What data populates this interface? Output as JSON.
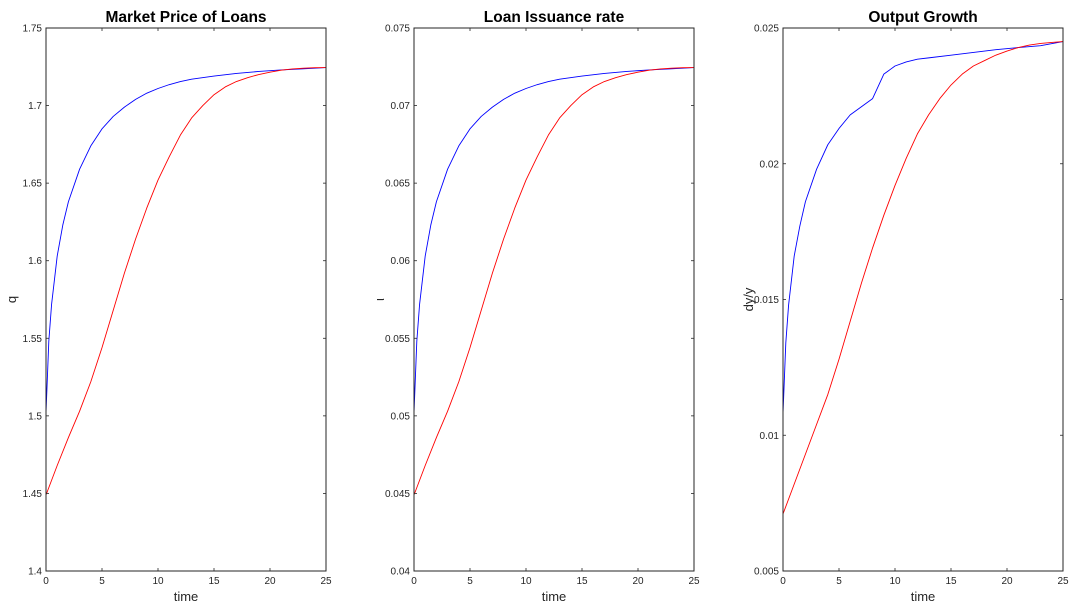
{
  "chart_data": [
    {
      "type": "line",
      "title": "Market Price of Loans",
      "xlabel": "time",
      "ylabel": "q",
      "xlim": [
        0,
        25
      ],
      "ylim": [
        1.4,
        1.75
      ],
      "xticks": [
        0,
        5,
        10,
        15,
        20,
        25
      ],
      "xticklabels": [
        "0",
        "5",
        "10",
        "15",
        "20",
        "25"
      ],
      "yticks": [
        1.4,
        1.45,
        1.5,
        1.55,
        1.6,
        1.65,
        1.7,
        1.75
      ],
      "yticklabels": [
        "1.4",
        "1.45",
        "1.5",
        "1.55",
        "1.6",
        "1.65",
        "1.7",
        "1.75"
      ],
      "grid": false,
      "series": [
        {
          "color": "#0000ff",
          "x": [
            0,
            0.25,
            0.5,
            1,
            1.5,
            2,
            3,
            4,
            5,
            6,
            7,
            8,
            9,
            10,
            11,
            12,
            13,
            15,
            17,
            19,
            21,
            23,
            25
          ],
          "y": [
            1.502,
            1.548,
            1.572,
            1.603,
            1.623,
            1.638,
            1.659,
            1.674,
            1.685,
            1.693,
            1.699,
            1.704,
            1.708,
            1.711,
            1.7135,
            1.7155,
            1.717,
            1.719,
            1.7207,
            1.722,
            1.723,
            1.7237,
            1.7245
          ]
        },
        {
          "color": "#ff0000",
          "x": [
            0,
            1,
            2,
            3,
            4,
            5,
            6,
            7,
            8,
            9,
            10,
            11,
            12,
            13,
            14,
            15,
            16,
            17,
            18,
            19,
            20,
            21,
            22,
            23,
            24,
            25
          ],
          "y": [
            1.449,
            1.468,
            1.486,
            1.503,
            1.522,
            1.544,
            1.568,
            1.592,
            1.614,
            1.634,
            1.652,
            1.667,
            1.681,
            1.692,
            1.7,
            1.707,
            1.712,
            1.7155,
            1.718,
            1.72,
            1.7215,
            1.7228,
            1.7236,
            1.7241,
            1.7244,
            1.7245
          ]
        }
      ]
    },
    {
      "type": "line",
      "title": "Loan Issuance rate",
      "xlabel": "time",
      "ylabel": "ι",
      "xlim": [
        0,
        25
      ],
      "ylim": [
        0.04,
        0.075
      ],
      "xticks": [
        0,
        5,
        10,
        15,
        20,
        25
      ],
      "xticklabels": [
        "0",
        "5",
        "10",
        "15",
        "20",
        "25"
      ],
      "yticks": [
        0.04,
        0.045,
        0.05,
        0.055,
        0.06,
        0.065,
        0.07,
        0.075
      ],
      "yticklabels": [
        "0.04",
        "0.045",
        "0.05",
        "0.055",
        "0.06",
        "0.065",
        "0.07",
        "0.075"
      ],
      "grid": false,
      "series": [
        {
          "color": "#0000ff",
          "x": [
            0,
            0.25,
            0.5,
            1,
            1.5,
            2,
            3,
            4,
            5,
            6,
            7,
            8,
            9,
            10,
            11,
            12,
            13,
            15,
            17,
            19,
            21,
            23,
            25
          ],
          "y": [
            0.0502,
            0.0548,
            0.0572,
            0.0603,
            0.0623,
            0.0638,
            0.0659,
            0.0674,
            0.0685,
            0.0693,
            0.0699,
            0.0704,
            0.0708,
            0.0711,
            0.07135,
            0.07155,
            0.0717,
            0.0719,
            0.07207,
            0.0722,
            0.0723,
            0.07237,
            0.07245
          ]
        },
        {
          "color": "#ff0000",
          "x": [
            0,
            1,
            2,
            3,
            4,
            5,
            6,
            7,
            8,
            9,
            10,
            11,
            12,
            13,
            14,
            15,
            16,
            17,
            18,
            19,
            20,
            21,
            22,
            23,
            24,
            25
          ],
          "y": [
            0.0449,
            0.0468,
            0.0486,
            0.0503,
            0.0522,
            0.0544,
            0.0568,
            0.0592,
            0.0614,
            0.0634,
            0.0652,
            0.0667,
            0.0681,
            0.0692,
            0.07,
            0.0707,
            0.0712,
            0.07155,
            0.0718,
            0.072,
            0.07215,
            0.07228,
            0.07236,
            0.07241,
            0.07244,
            0.07245
          ]
        }
      ]
    },
    {
      "type": "line",
      "title": "Output Growth",
      "xlabel": "time",
      "ylabel": "dy/y",
      "xlim": [
        0,
        25
      ],
      "ylim": [
        0.005,
        0.025
      ],
      "xticks": [
        0,
        5,
        10,
        15,
        20,
        25
      ],
      "xticklabels": [
        "0",
        "5",
        "10",
        "15",
        "20",
        "25"
      ],
      "yticks": [
        0.005,
        0.01,
        0.015,
        0.02,
        0.025
      ],
      "yticklabels": [
        "0.005",
        "0.01",
        "0.015",
        "0.02",
        "0.025"
      ],
      "grid": false,
      "series": [
        {
          "color": "#0000ff",
          "x": [
            0,
            0.25,
            0.5,
            1,
            1.5,
            2,
            3,
            4,
            5,
            6,
            7,
            8,
            9,
            10,
            11,
            12,
            13,
            15,
            17,
            19,
            21,
            23,
            25
          ],
          "y": [
            0.0108,
            0.0134,
            0.0148,
            0.0166,
            0.0177,
            0.0186,
            0.0198,
            0.0207,
            0.0213,
            0.0218,
            0.0221,
            0.0224,
            0.0233,
            0.0236,
            0.02375,
            0.02385,
            0.0239,
            0.024,
            0.0241,
            0.0242,
            0.02428,
            0.02435,
            0.0245
          ]
        },
        {
          "color": "#ff0000",
          "x": [
            0,
            1,
            2,
            3,
            4,
            5,
            6,
            7,
            8,
            9,
            10,
            11,
            12,
            13,
            14,
            15,
            16,
            17,
            18,
            19,
            20,
            21,
            22,
            23,
            24,
            25
          ],
          "y": [
            0.0071,
            0.0082,
            0.0093,
            0.0104,
            0.0115,
            0.0128,
            0.0142,
            0.0156,
            0.0169,
            0.0181,
            0.0192,
            0.0202,
            0.0211,
            0.0218,
            0.0224,
            0.0229,
            0.0233,
            0.0236,
            0.0238,
            0.024,
            0.02415,
            0.02428,
            0.02437,
            0.02443,
            0.02447,
            0.0245
          ]
        }
      ]
    }
  ]
}
